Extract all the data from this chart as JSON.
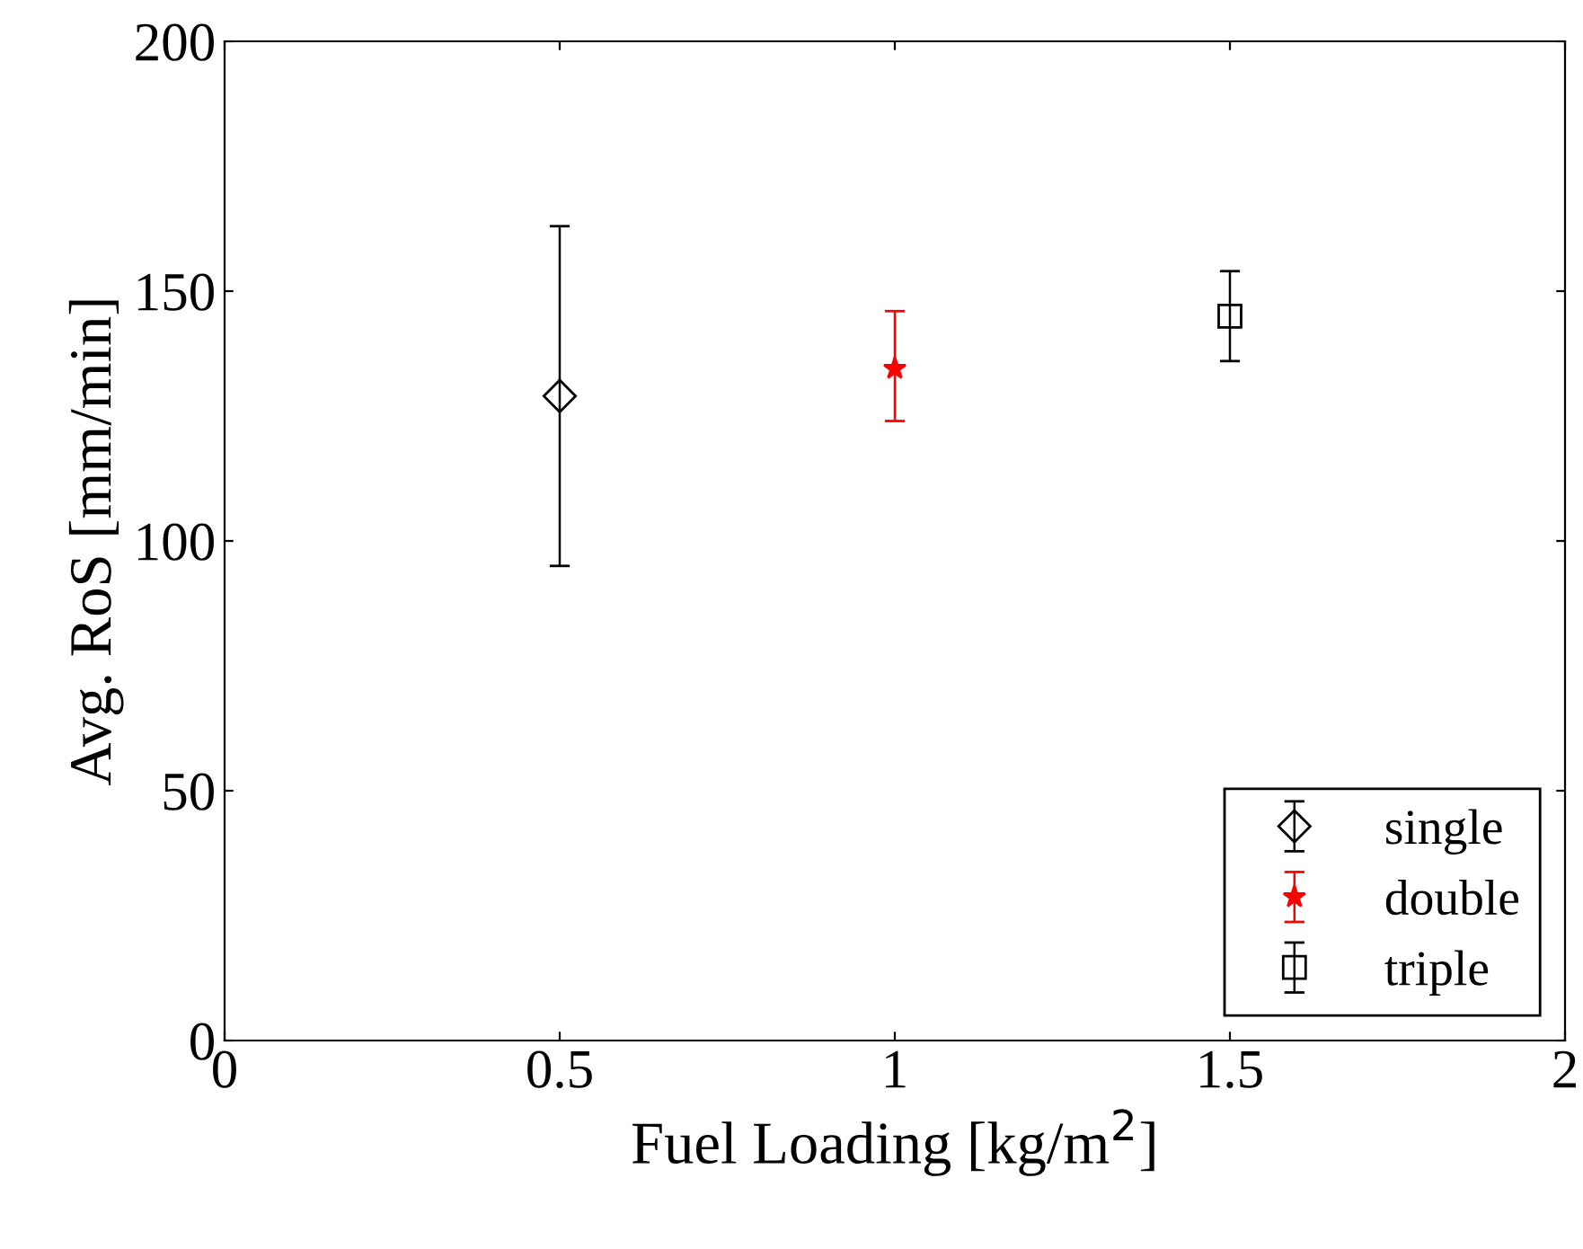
{
  "chart_data": {
    "type": "scatter",
    "xlabel": "Fuel Loading [kg/m$^{2}$]",
    "ylabel": "Avg. RoS [mm/min]",
    "xlim": [
      0,
      2
    ],
    "ylim": [
      0,
      200
    ],
    "xticks": [
      0,
      0.5,
      1,
      1.5,
      2
    ],
    "yticks": [
      0,
      50,
      100,
      150,
      200
    ],
    "grid": false,
    "legend": "bottom right",
    "series": [
      {
        "name": "single",
        "color": "#000000",
        "marker": "diamond",
        "x": [
          0.5
        ],
        "values": [
          129
        ],
        "errors": [
          [
            95,
            163
          ]
        ]
      },
      {
        "name": "double",
        "color": "#ff0000",
        "marker": "star",
        "x": [
          1
        ],
        "values": [
          134.5
        ],
        "errors": [
          [
            124,
            146
          ]
        ]
      },
      {
        "name": "triple",
        "color": "#000000",
        "marker": "square",
        "x": [
          1.5
        ],
        "values": [
          145
        ],
        "errors": [
          [
            136,
            154
          ]
        ]
      }
    ]
  }
}
